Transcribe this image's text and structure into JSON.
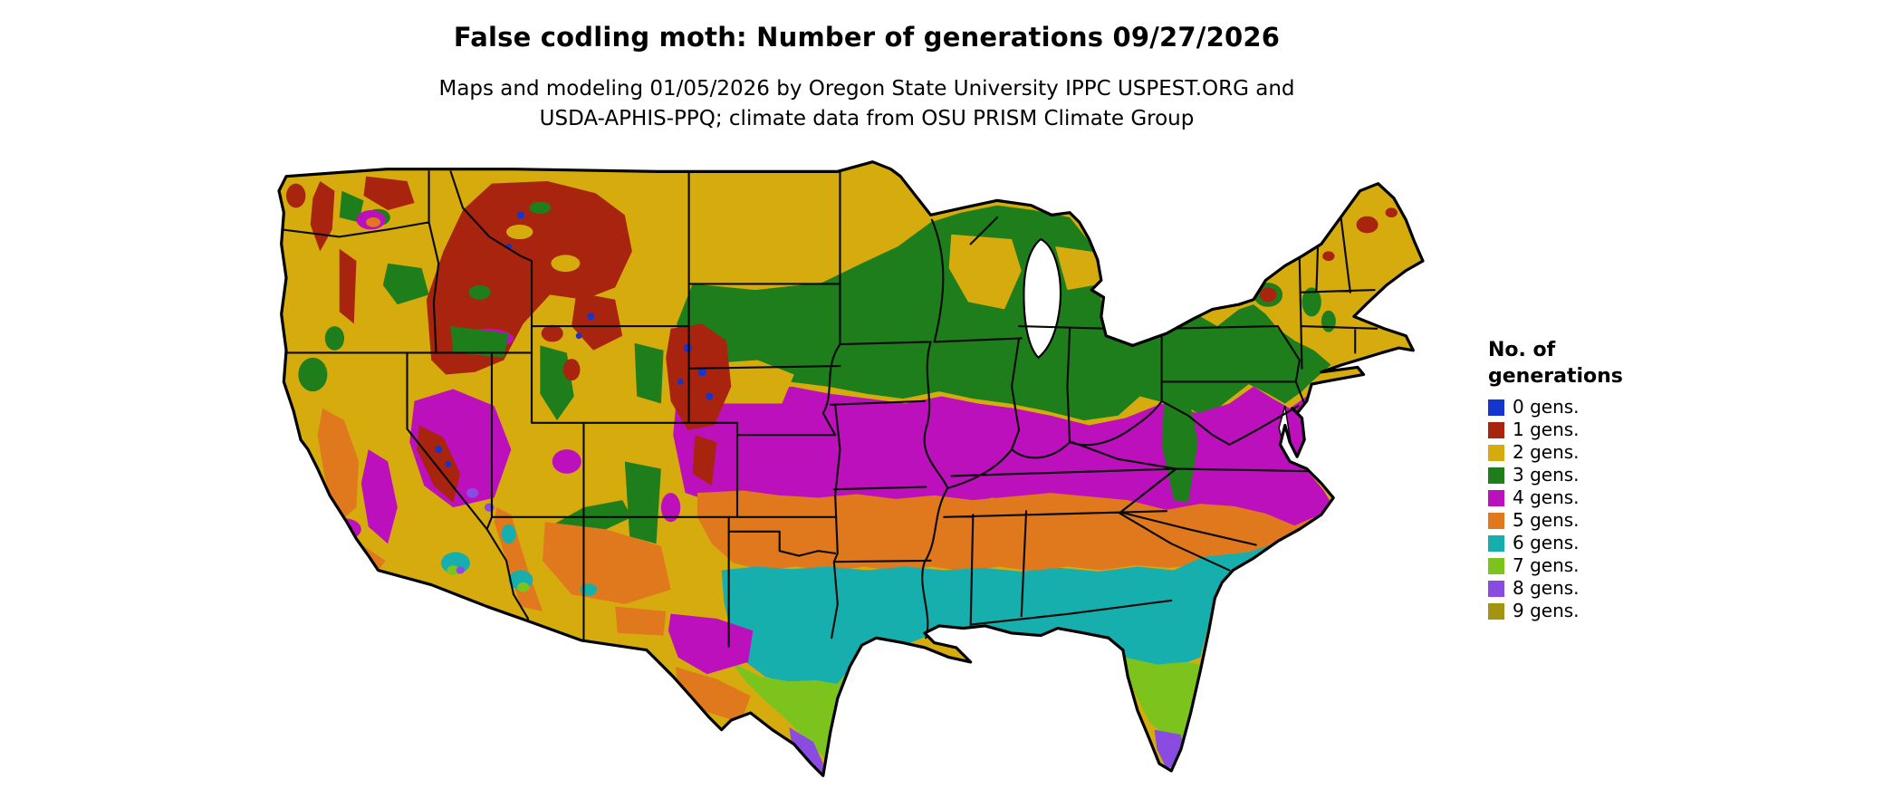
{
  "header": {
    "title": "False codling moth: Number of generations 09/27/2026",
    "subtitle_line1": "Maps and modeling 01/05/2026 by Oregon State University IPPC USPEST.ORG and",
    "subtitle_line2": "USDA-APHIS-PPQ; climate data from OSU PRISM Climate Group"
  },
  "legend": {
    "title_line1": "No. of",
    "title_line2": "generations",
    "items": [
      {
        "label": "0 gens.",
        "color": "#1535cf"
      },
      {
        "label": "1 gens.",
        "color": "#a8240f"
      },
      {
        "label": "2 gens.",
        "color": "#d5ab0e"
      },
      {
        "label": "3 gens.",
        "color": "#1e7e1b"
      },
      {
        "label": "4 gens.",
        "color": "#bd10bd"
      },
      {
        "label": "5 gens.",
        "color": "#e0791e"
      },
      {
        "label": "6 gens.",
        "color": "#17aeae"
      },
      {
        "label": "7 gens.",
        "color": "#7cc41d"
      },
      {
        "label": "8 gens.",
        "color": "#8a4ce0"
      },
      {
        "label": "9 gens.",
        "color": "#a3950f"
      }
    ]
  },
  "map": {
    "region": "Contiguous United States",
    "depicts": "Modeled number of false codling moth generations per year by location",
    "border_color": "#000000",
    "water_color": "#ffffff"
  }
}
